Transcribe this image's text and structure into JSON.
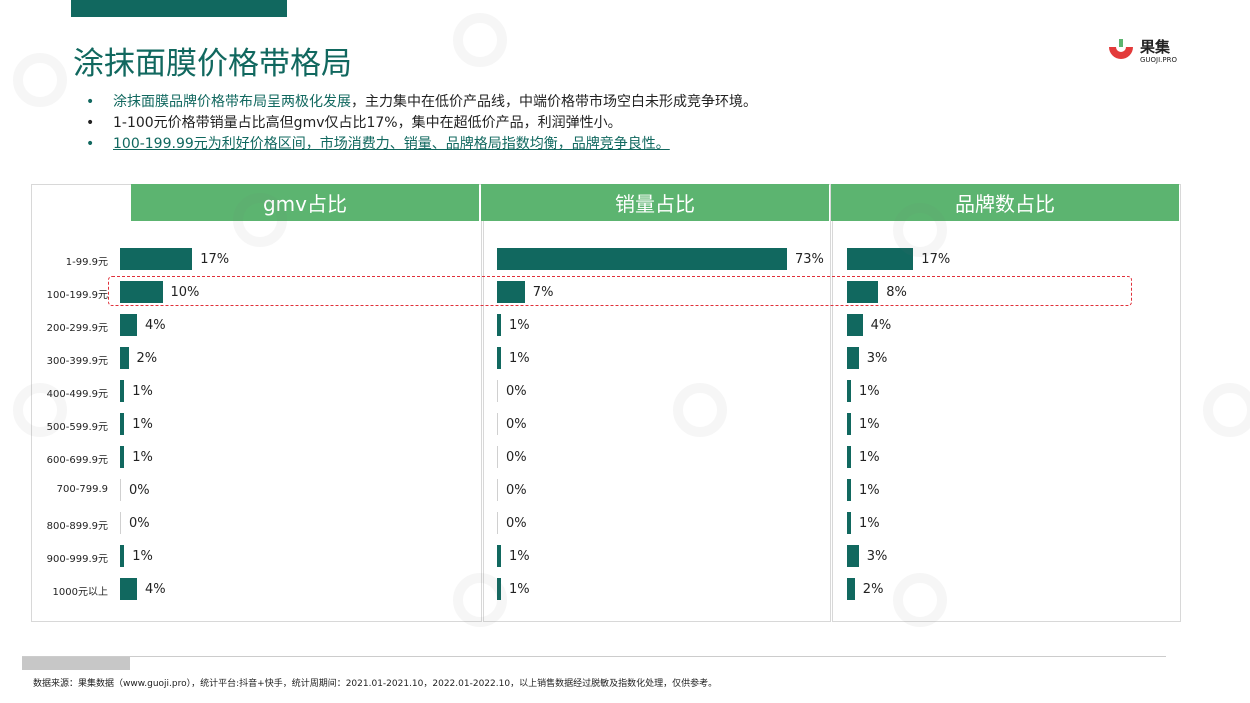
{
  "title": "涂抹面膜价格带格局",
  "logo": {
    "name": "果集",
    "sub": "GUOJI.PRO"
  },
  "bullets": [
    {
      "text": "涂抹面膜品牌价格带布局呈两极化发展",
      "rest": "，主力集中在低价产品线，中端价格带市场空白未形成竞争环境。"
    },
    {
      "text": "1-100元价格带销量占比高但gmv仅占比17%，集中在超低价产品，利润弹性小。"
    },
    {
      "text": "100-199.99元为利好价格区间，市场消费力、销量、品牌格局指数均衡，品牌竞争良性。"
    }
  ],
  "colors": {
    "accent": "#11685f",
    "header": "#5cb470",
    "bar": "#11685f",
    "highlight": "#e0303a"
  },
  "chart_data": {
    "type": "bar",
    "orientation": "horizontal",
    "categories": [
      "1-99.9元",
      "100-199.9元",
      "200-299.9元",
      "300-399.9元",
      "400-499.9元",
      "500-599.9元",
      "600-699.9元",
      "700-799.9",
      "800-899.9元",
      "900-999.9元",
      "1000元以上"
    ],
    "series": [
      {
        "name": "gmv占比",
        "values": [
          17,
          10,
          4,
          2,
          1,
          1,
          1,
          0,
          0,
          1,
          4
        ],
        "labels": [
          "17%",
          "10%",
          "4%",
          "2%",
          "1%",
          "1%",
          "1%",
          "0%",
          "0%",
          "1%",
          "4%"
        ],
        "xlim": [
          0,
          70
        ]
      },
      {
        "name": "销量占比",
        "values": [
          73,
          7,
          1,
          1,
          0,
          0,
          0,
          0,
          0,
          1,
          1
        ],
        "labels": [
          "73%",
          "7%",
          "1%",
          "1%",
          "0%",
          "0%",
          "0%",
          "0%",
          "0%",
          "1%",
          "1%"
        ],
        "xlim": [
          0,
          73
        ]
      },
      {
        "name": "品牌数占比",
        "values": [
          17,
          8,
          4,
          3,
          1,
          1,
          1,
          1,
          1,
          3,
          2
        ],
        "labels": [
          "17%",
          "8%",
          "4%",
          "3%",
          "1%",
          "1%",
          "1%",
          "1%",
          "1%",
          "3%",
          "2%"
        ],
        "xlim": [
          0,
          70
        ]
      }
    ],
    "highlighted_category": "100-199.9元"
  },
  "source": "数据来源：果集数据（www.guoji.pro），统计平台:抖音+快手，统计周期间：2021.01-2021.10，2022.01-2022.10，以上销售数据经过脱敏及指数化处理，仅供参考。"
}
